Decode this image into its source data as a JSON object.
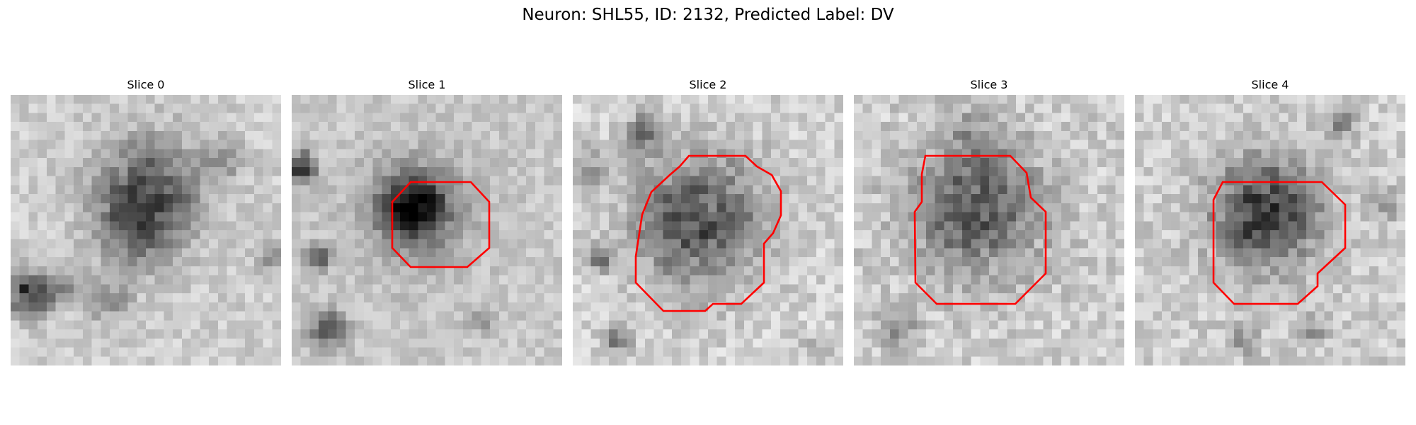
{
  "figure": {
    "title": "Neuron: SHL55, ID: 2132, Predicted Label: DV",
    "contour_color": "#ff0000",
    "colormap": "gray"
  },
  "panels": [
    {
      "title": "Slice 0",
      "has_contour": false
    },
    {
      "title": "Slice 1",
      "has_contour": true
    },
    {
      "title": "Slice 2",
      "has_contour": true
    },
    {
      "title": "Slice 3",
      "has_contour": true
    },
    {
      "title": "Slice 4",
      "has_contour": true
    }
  ]
}
